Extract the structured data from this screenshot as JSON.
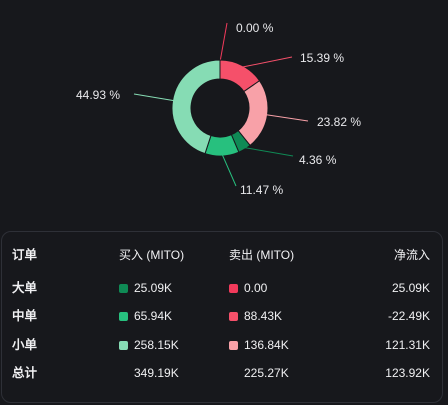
{
  "chart_data": {
    "type": "pie",
    "style": "donut",
    "slices": [
      {
        "label": "0.00 %",
        "value": 0.0,
        "color": "#f23a5b"
      },
      {
        "label": "15.39 %",
        "value": 15.39,
        "color": "#f5506a"
      },
      {
        "label": "23.82 %",
        "value": 23.82,
        "color": "#f8a1a8"
      },
      {
        "label": "4.36 %",
        "value": 4.36,
        "color": "#0f8a55"
      },
      {
        "label": "11.47 %",
        "value": 11.47,
        "color": "#27c07e"
      },
      {
        "label": "44.93 %",
        "value": 44.93,
        "color": "#86dcb4"
      }
    ]
  },
  "table": {
    "headers": {
      "order": "订单",
      "buy": "买入 (MITO)",
      "sell": "卖出 (MITO)",
      "net": "净流入"
    },
    "rows": [
      {
        "label": "大单",
        "buy": "25.09K",
        "sell": "0.00",
        "net": "25.09K",
        "buy_color": "#0f8a55",
        "sell_color": "#f23a5b"
      },
      {
        "label": "中单",
        "buy": "65.94K",
        "sell": "88.43K",
        "net": "-22.49K",
        "buy_color": "#27c07e",
        "sell_color": "#f5506a"
      },
      {
        "label": "小单",
        "buy": "258.15K",
        "sell": "136.84K",
        "net": "121.31K",
        "buy_color": "#86dcb4",
        "sell_color": "#f8a1a8"
      }
    ],
    "total": {
      "label": "总计",
      "buy": "349.19K",
      "sell": "225.27K",
      "net": "123.92K"
    }
  }
}
